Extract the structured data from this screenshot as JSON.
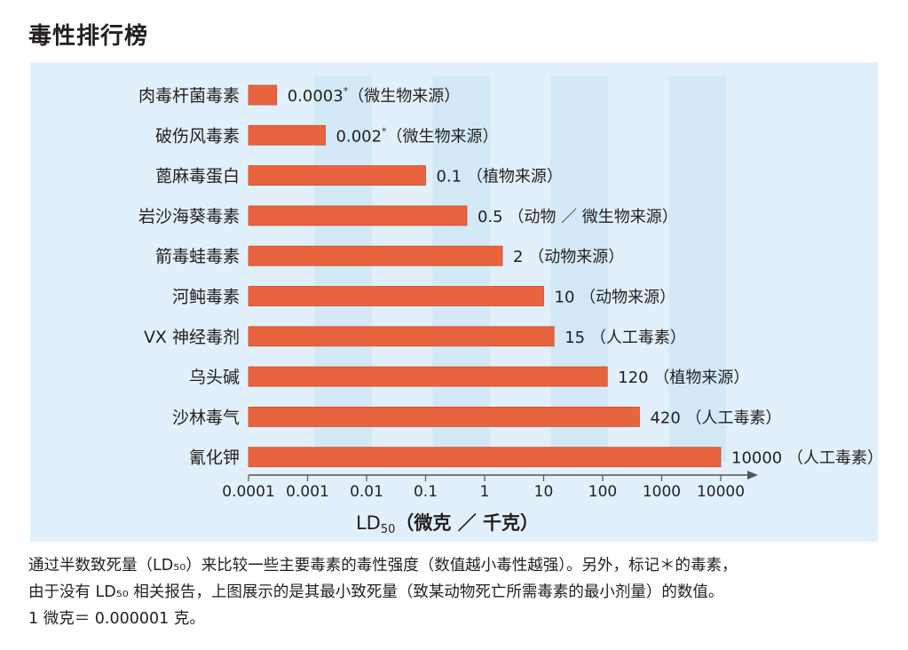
{
  "title": "毒性排行榜",
  "chart_data": {
    "type": "bar",
    "orientation": "horizontal",
    "x_scale": "log",
    "x_ticks": [
      0.0001,
      0.001,
      0.01,
      0.1,
      1,
      10,
      100,
      1000,
      10000
    ],
    "x_tick_labels": [
      "0.0001",
      "0.001",
      "0.01",
      "0.1",
      "1",
      "10",
      "100",
      "1000",
      "10000"
    ],
    "xlabel_main": "LD",
    "xlabel_sub": "50",
    "xlabel_unit": "（微克 ／ 千克）",
    "bar_color": "#e8643f",
    "background_color": "#e1f0fa",
    "band_color": "#c9e3f5",
    "bars": [
      {
        "category": "肉毒杆菌毒素",
        "value": 0.0003,
        "value_label": "0.0003",
        "marker": "*",
        "source": "（微生物来源）"
      },
      {
        "category": "破伤风毒素",
        "value": 0.002,
        "value_label": "0.002",
        "marker": "*",
        "source": "（微生物来源）"
      },
      {
        "category": "蓖麻毒蛋白",
        "value": 0.1,
        "value_label": "0.1",
        "marker": "",
        "source": "（植物来源）"
      },
      {
        "category": "岩沙海葵毒素",
        "value": 0.5,
        "value_label": "0.5",
        "marker": "",
        "source": "（动物 ／ 微生物来源）"
      },
      {
        "category": "箭毒蛙毒素",
        "value": 2,
        "value_label": "2",
        "marker": "",
        "source": "（动物来源）"
      },
      {
        "category": "河鲀毒素",
        "value": 10,
        "value_label": "10",
        "marker": "",
        "source": "（动物来源）"
      },
      {
        "category": "VX 神经毒剂",
        "value": 15,
        "value_label": "15",
        "marker": "",
        "source": "（人工毒素）"
      },
      {
        "category": "乌头碱",
        "value": 120,
        "value_label": "120",
        "marker": "",
        "source": "（植物来源）"
      },
      {
        "category": "沙林毒气",
        "value": 420,
        "value_label": "420",
        "marker": "",
        "source": "（人工毒素）"
      },
      {
        "category": "氰化钾",
        "value": 10000,
        "value_label": "10000",
        "marker": "",
        "source": "（人工毒素）"
      }
    ]
  },
  "note": {
    "line1": "通过半数致死量（LD₅₀）来比较一些主要毒素的毒性强度（数值越小毒性越强）。另外，标记＊的毒素，",
    "line2": "由于没有 LD₅₀ 相关报告，上图展示的是其最小致死量（致某动物死亡所需毒素的最小剂量）的数值。",
    "line3": "1 微克＝ 0.000001 克。"
  }
}
